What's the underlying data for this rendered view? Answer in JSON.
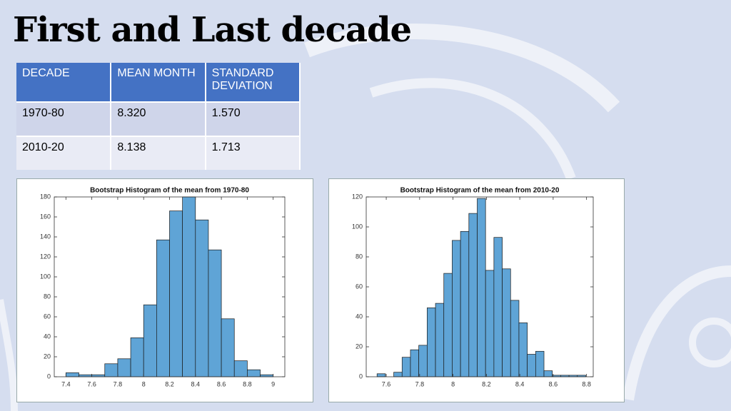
{
  "title": "First and Last decade",
  "table": {
    "header": [
      "DECADE",
      "MEAN MONTH",
      "STANDARD DEVIATION"
    ],
    "rows": [
      [
        "1970-80",
        "8.320",
        "1.570"
      ],
      [
        "2010-20",
        "8.138",
        "1.713"
      ]
    ]
  },
  "chart_data": [
    {
      "type": "histogram",
      "title": "Bootstrap Histogram of the mean from 1970-80",
      "color": "#5fa4d6",
      "bins": [
        7.4,
        7.5,
        7.6,
        7.7,
        7.8,
        7.9,
        8.0,
        8.1,
        8.2,
        8.3,
        8.4,
        8.5,
        8.6,
        8.7,
        8.8,
        8.9,
        9.0
      ],
      "values": [
        4,
        2,
        2,
        13,
        18,
        39,
        72,
        137,
        166,
        180,
        157,
        127,
        58,
        16,
        7,
        2
      ],
      "xlim": [
        7.31,
        9.09
      ],
      "xticks": [
        7.4,
        7.6,
        7.8,
        8,
        8.2,
        8.4,
        8.6,
        8.8,
        9
      ],
      "ylim": [
        0,
        180
      ],
      "yticks": [
        0,
        20,
        40,
        60,
        80,
        100,
        120,
        140,
        160,
        180
      ]
    },
    {
      "type": "histogram",
      "title": "Bootstrap Histogram of the mean from 2010-20",
      "color": "#5fa4d6",
      "bins": [
        7.545,
        7.595,
        7.645,
        7.695,
        7.745,
        7.795,
        7.845,
        7.895,
        7.945,
        7.995,
        8.045,
        8.095,
        8.145,
        8.195,
        8.245,
        8.295,
        8.345,
        8.395,
        8.445,
        8.495,
        8.545,
        8.595,
        8.645,
        8.695,
        8.745,
        8.795
      ],
      "values": [
        2,
        0,
        3,
        13,
        18,
        21,
        46,
        49,
        69,
        91,
        97,
        109,
        119,
        71,
        93,
        72,
        51,
        36,
        15,
        17,
        4,
        1,
        1,
        1,
        1
      ],
      "xlim": [
        7.48,
        8.84
      ],
      "xticks": [
        7.6,
        7.8,
        8,
        8.2,
        8.4,
        8.6,
        8.8
      ],
      "ylim": [
        0,
        120
      ],
      "yticks": [
        0,
        20,
        40,
        60,
        80,
        100,
        120
      ]
    }
  ]
}
